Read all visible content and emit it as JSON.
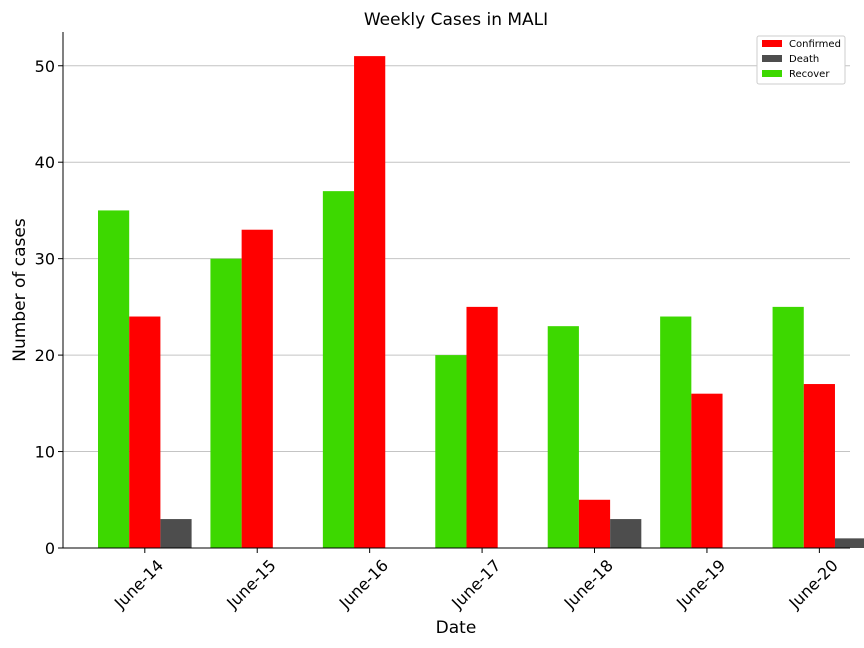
{
  "chart_data": {
    "type": "bar",
    "title": "Weekly Cases in MALI",
    "xlabel": "Date",
    "ylabel": "Number of cases",
    "categories": [
      "June-14",
      "June-15",
      "June-16",
      "June-17",
      "June-18",
      "June-19",
      "June-20"
    ],
    "series": [
      {
        "name": "Recover",
        "color": "#3dd800",
        "values": [
          35,
          30,
          37,
          20,
          23,
          24,
          25
        ]
      },
      {
        "name": "Confirmed",
        "color": "#ff0000",
        "values": [
          24,
          33,
          51,
          25,
          5,
          16,
          17
        ]
      },
      {
        "name": "Death",
        "color": "#4d4d4d",
        "values": [
          3,
          0,
          0,
          0,
          3,
          0,
          1
        ]
      }
    ],
    "legend_order": [
      "Confirmed",
      "Death",
      "Recover"
    ],
    "legend_position": "top-right",
    "ylim": [
      0,
      53.5
    ],
    "yticks": [
      0,
      10,
      20,
      30,
      40,
      50
    ],
    "grid": "horizontal"
  }
}
